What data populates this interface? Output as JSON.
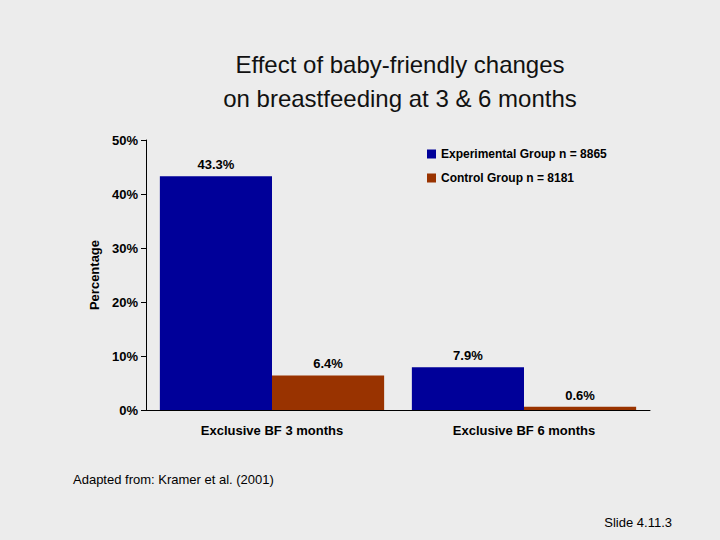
{
  "chart_data": {
    "type": "bar",
    "title": "Effect of baby-friendly changes\non breastfeeding at 3 & 6 months",
    "y_label": "Percentage",
    "categories": [
      "Exclusive BF 3 months",
      "Exclusive BF 6 months"
    ],
    "series": [
      {
        "name": "Experimental Group n = 8865",
        "color": "#000099",
        "values": [
          43.3,
          7.9
        ],
        "value_labels": [
          "43.3%",
          "7.9%"
        ]
      },
      {
        "name": "Control Group n = 8181",
        "color": "#993300",
        "values": [
          6.4,
          0.6
        ],
        "value_labels": [
          "6.4%",
          "0.6%"
        ]
      }
    ],
    "ylim": [
      0,
      50
    ],
    "yticks": [
      {
        "value": 0,
        "label": "0%"
      },
      {
        "value": 10,
        "label": "10%"
      },
      {
        "value": 20,
        "label": "20%"
      },
      {
        "value": 30,
        "label": "30%"
      },
      {
        "value": 40,
        "label": "40%"
      },
      {
        "value": 50,
        "label": "50%"
      }
    ],
    "grid": false,
    "legend": "upper right",
    "data_labels": true,
    "annotations": [
      "Adapted from: Kramer et al. (2001)",
      "Slide 4.11.3"
    ]
  }
}
